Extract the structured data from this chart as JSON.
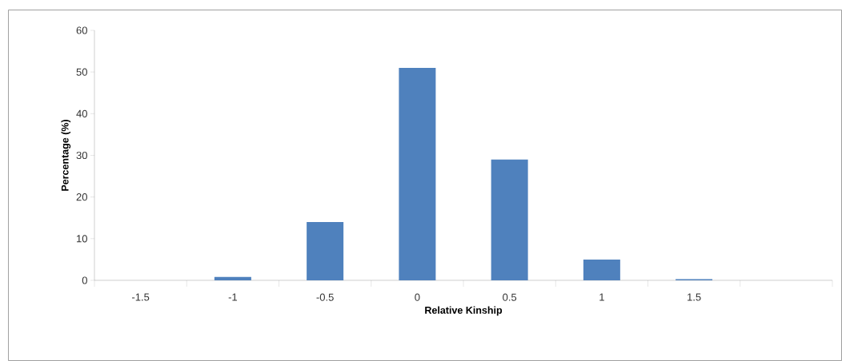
{
  "chart_data": {
    "type": "bar",
    "xlabel": "Relative Kinship",
    "ylabel": "Percentage (%)",
    "categories": [
      "-1.5",
      "-1",
      "-0.5",
      "0",
      "0.5",
      "1",
      "1.5",
      null
    ],
    "values": [
      0,
      0.8,
      14,
      51,
      29,
      5,
      0.3,
      null
    ],
    "color": "#4f81bd",
    "ylim": [
      0,
      60
    ],
    "yticks": [
      0,
      10,
      20,
      30,
      40,
      50,
      60
    ]
  }
}
